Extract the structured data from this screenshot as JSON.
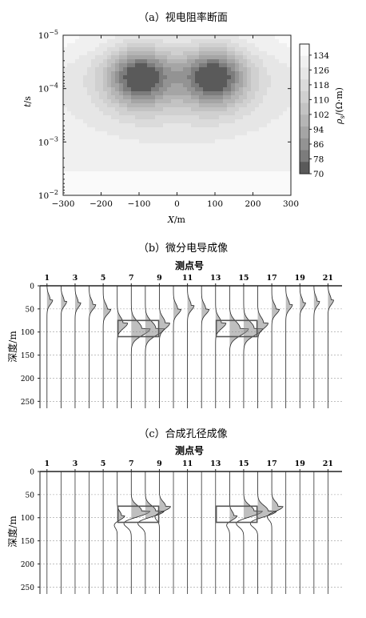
{
  "chart_data": [
    {
      "type": "heatmap",
      "title": "（a）视电阻率断面",
      "xlabel_italic": "X",
      "xlabel_unit": "/m",
      "ylabel_italic": "t",
      "ylabel_unit": "/s",
      "x_ticks": [
        "−300",
        "−200",
        "−100",
        "0",
        "100",
        "200",
        "300"
      ],
      "x_tick_values": [
        -300,
        -200,
        -100,
        0,
        100,
        200,
        300
      ],
      "xlim": [
        -300,
        300
      ],
      "y_scale": "log",
      "y_ticks": [
        {
          "base": "10",
          "exp": "−5",
          "value": 1e-05
        },
        {
          "base": "10",
          "exp": "−4",
          "value": 0.0001
        },
        {
          "base": "10",
          "exp": "−3",
          "value": 0.001
        },
        {
          "base": "10",
          "exp": "−2",
          "value": 0.01
        }
      ],
      "ylim": [
        1e-05,
        0.01
      ],
      "y_inverted": true,
      "colorbar": {
        "label_main": "ρ",
        "label_sub": "s",
        "label_unit": "/(Ω·m)",
        "ticks": [
          "134",
          "126",
          "118",
          "110",
          "102",
          "94",
          "86",
          "78",
          "70"
        ],
        "tick_values": [
          134,
          126,
          118,
          110,
          102,
          94,
          86,
          78,
          70
        ],
        "range": [
          70,
          140
        ],
        "colors": [
          "#fafafa",
          "#f0f0f0",
          "#e6e6e6",
          "#dbdbdb",
          "#d0d0d0",
          "#c3c3c3",
          "#b5b5b5",
          "#a5a5a5",
          "#939393",
          "#7c7c7c",
          "#5a5a5a"
        ]
      },
      "anomalies": [
        {
          "x": -100,
          "t": 6e-05,
          "min_rho": 70
        },
        {
          "x": 100,
          "t": 6e-05,
          "min_rho": 70
        }
      ],
      "background_rho": 134
    },
    {
      "type": "line",
      "title": "（b）微分电导成像",
      "top_label": "测点号",
      "ylabel": "深度/m",
      "stations": [
        1,
        2,
        3,
        4,
        5,
        6,
        7,
        8,
        9,
        10,
        11,
        12,
        13,
        14,
        15,
        16,
        17,
        18,
        19,
        20,
        21
      ],
      "station_labels": [
        "1",
        "3",
        "5",
        "7",
        "9",
        "11",
        "13",
        "15",
        "17",
        "19",
        "21"
      ],
      "y_ticks": [
        "0",
        "50",
        "100",
        "150",
        "200",
        "250"
      ],
      "ylim": [
        0,
        265
      ],
      "wiggle_peak_depth": [
        30,
        33,
        36,
        40,
        50,
        80,
        92,
        92,
        80,
        50,
        42,
        50,
        80,
        92,
        92,
        80,
        50,
        40,
        36,
        33,
        30
      ],
      "wiggle_amplitude": [
        0.3,
        0.3,
        0.3,
        0.35,
        0.4,
        0.55,
        1.0,
        1.0,
        0.55,
        0.4,
        0.35,
        0.4,
        0.55,
        1.0,
        1.0,
        0.55,
        0.4,
        0.35,
        0.3,
        0.3,
        0.3
      ],
      "anomaly_boxes": [
        {
          "station_from": 6,
          "station_to": 9,
          "depth_from": 75,
          "depth_to": 110
        },
        {
          "station_from": 13,
          "station_to": 16,
          "depth_from": 75,
          "depth_to": 110
        }
      ]
    },
    {
      "type": "line",
      "title": "（c）合成孔径成像",
      "top_label": "测点号",
      "ylabel": "深度/m",
      "stations": [
        1,
        2,
        3,
        4,
        5,
        6,
        7,
        8,
        9,
        10,
        11,
        12,
        13,
        14,
        15,
        16,
        17,
        18,
        19,
        20,
        21
      ],
      "station_labels": [
        "1",
        "3",
        "5",
        "7",
        "9",
        "11",
        "13",
        "15",
        "17",
        "19",
        "21"
      ],
      "y_ticks": [
        "0",
        "50",
        "100",
        "150",
        "200",
        "250"
      ],
      "ylim": [
        0,
        265
      ],
      "wiggle_peak_depth": [
        0,
        0,
        0,
        0,
        0,
        95,
        85,
        85,
        75,
        0,
        0,
        0,
        0,
        95,
        85,
        85,
        75,
        0,
        0,
        0,
        0
      ],
      "wiggle_amplitude": [
        0,
        0,
        0,
        0,
        0,
        0.4,
        1.0,
        1.0,
        0.6,
        0,
        0,
        0,
        0,
        0.4,
        1.0,
        1.0,
        0.6,
        0,
        0,
        0,
        0
      ],
      "anomaly_boxes": [
        {
          "station_from": 6,
          "station_to": 9,
          "depth_from": 75,
          "depth_to": 110
        },
        {
          "station_from": 13,
          "station_to": 16,
          "depth_from": 75,
          "depth_to": 110
        }
      ]
    }
  ]
}
